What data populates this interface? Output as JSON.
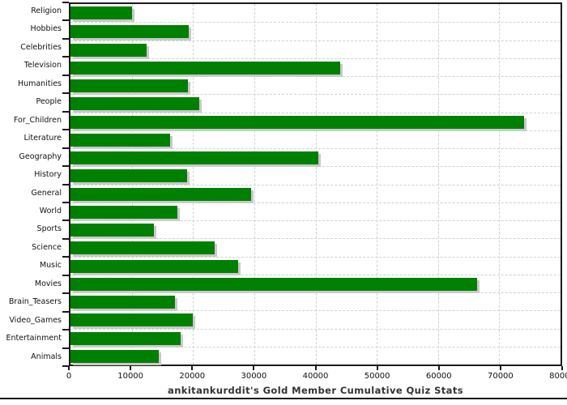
{
  "page": {
    "background": "#ffffff"
  },
  "chart_data": {
    "type": "bar",
    "orientation": "horizontal",
    "title": "ankitankurddit's Gold Member Cumulative Quiz Stats",
    "categories": [
      "Religion",
      "Hobbies",
      "Celebrities",
      "Television",
      "Humanities",
      "People",
      "For_Children",
      "Literature",
      "Geography",
      "History",
      "General",
      "World",
      "Sports",
      "Science",
      "Music",
      "Movies",
      "Brain_Teasers",
      "Video_Games",
      "Entertainment",
      "Animals"
    ],
    "values": [
      10000,
      19300,
      12400,
      44000,
      19200,
      21000,
      74100,
      16300,
      40400,
      19000,
      29500,
      17500,
      13600,
      23600,
      27400,
      66400,
      17000,
      20000,
      18000,
      14400
    ],
    "xlabel": "",
    "ylabel": "",
    "xlim": [
      0,
      80000
    ],
    "x_ticks": [
      0,
      10000,
      20000,
      30000,
      40000,
      50000,
      60000,
      70000,
      80000
    ],
    "grid": "dashed-both-axes",
    "legend": "none",
    "colors": {
      "bar": "#008000",
      "bar_shadow": "#c9c9c9",
      "grid": "#ccd2d2",
      "axis": "#1a1a1a",
      "tick_label": "#111111",
      "category_label": "#111111",
      "title": "#333333"
    }
  }
}
